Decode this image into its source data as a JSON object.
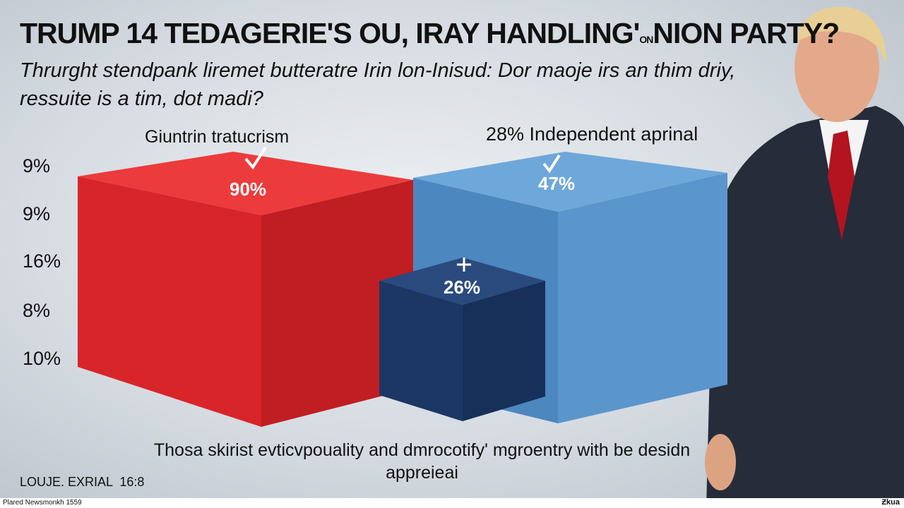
{
  "title": {
    "main": "TRUMP 14 TEDAGERIE'S OU, IRAY HANDLING'",
    "small": "ON",
    "end": "NION PARTY?"
  },
  "subtitle": [
    "Thrurght stendpank liremet butteratre Irin lon-Inisud: Dor maoje irs an thim driy,",
    "ressuite is a tim, dot madi?"
  ],
  "group_labels": [
    "Giuntrin tratucrism",
    "28% Independent aprinal"
  ],
  "axis_labels": [
    "9%",
    "9%",
    "16%",
    "8%",
    "10%"
  ],
  "bar_labels": [
    "90%",
    "47%",
    "26%"
  ],
  "caption": "Thosa skirist evticvpouality and dmrocotify' mgroentry with be desidn appreieai",
  "corner_label": "LOUJE. EXRIAL  16:8",
  "footer": {
    "left": "Plared Newsmonkh 1559",
    "right": "Ƶkua"
  }
}
